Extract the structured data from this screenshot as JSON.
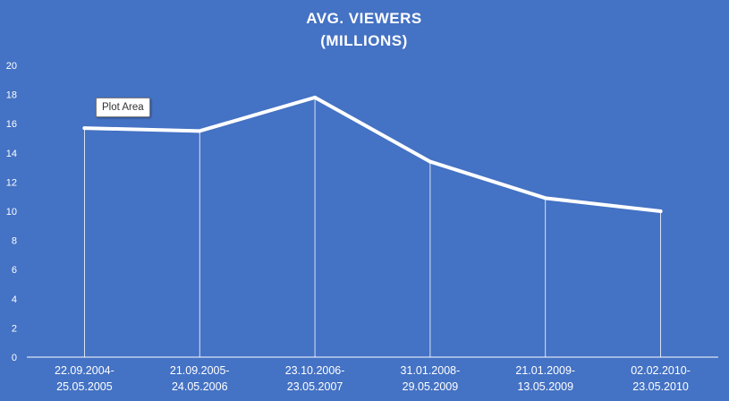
{
  "chart_data": {
    "type": "line",
    "title_lines": [
      "AVG. VIEWERS",
      "(MILLIONS)"
    ],
    "categories": [
      [
        "22.09.2004-",
        "25.05.2005"
      ],
      [
        "21.09.2005-",
        "24.05.2006"
      ],
      [
        "23.10.2006-",
        "23.05.2007"
      ],
      [
        "31.01.2008-",
        "29.05.2009"
      ],
      [
        "21.01.2009-",
        "13.05.2009"
      ],
      [
        "02.02.2010-",
        "23.05.2010"
      ]
    ],
    "series": [
      {
        "values": [
          15.7,
          15.5,
          17.8,
          13.4,
          10.9,
          10.0
        ]
      }
    ],
    "xlabel": "",
    "ylabel": "",
    "ylim": [
      0,
      20
    ],
    "yticks": [
      0,
      2,
      4,
      6,
      8,
      10,
      12,
      14,
      16,
      18,
      20
    ],
    "grid": false,
    "drop_lines": true,
    "legend": "none",
    "colors": {
      "background": "#4472c4",
      "line": "#ffffff",
      "text": "#ffffff"
    }
  },
  "tooltip": {
    "text": "Plot Area"
  }
}
